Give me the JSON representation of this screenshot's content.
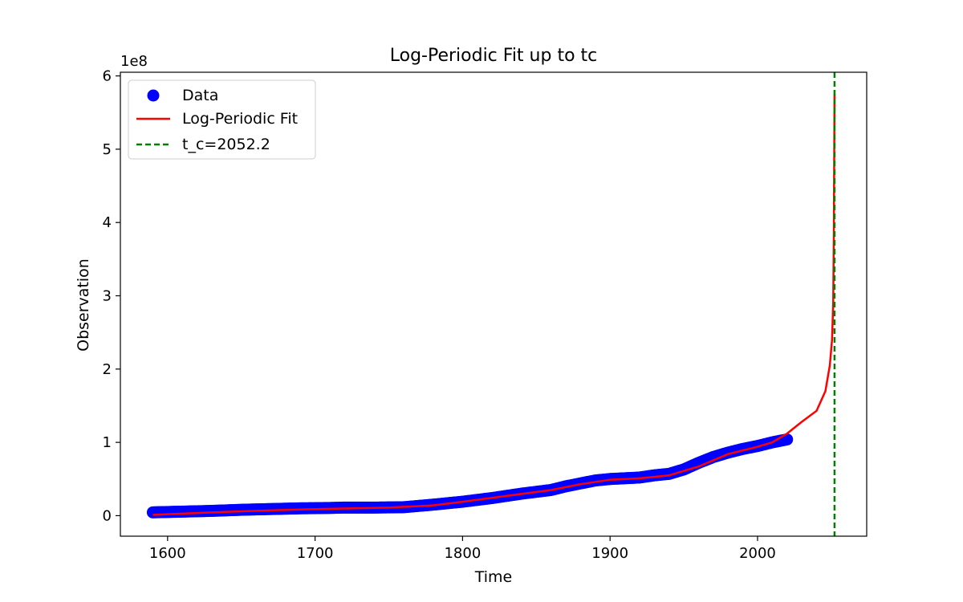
{
  "chart_data": {
    "type": "line",
    "title": "Log-Periodic Fit up to tc",
    "xlabel": "Time",
    "ylabel": "Observation",
    "offset_label": "1e8",
    "xlim": [
      1568,
      2074
    ],
    "ylim": [
      -0.28,
      6.05
    ],
    "x_ticks": [
      1600,
      1700,
      1800,
      1900,
      2000
    ],
    "y_ticks": [
      0,
      1,
      2,
      3,
      4,
      5,
      6
    ],
    "grid": false,
    "legend_position": "top-left",
    "legend": [
      {
        "label": "Data",
        "kind": "scatter",
        "color": "#0000ff"
      },
      {
        "label": "Log-Periodic Fit",
        "kind": "line",
        "color": "#ff0000"
      },
      {
        "label": "t_c=2052.2",
        "kind": "dashed-line",
        "color": "#008000"
      }
    ],
    "series": [
      {
        "name": "Data",
        "kind": "scatter",
        "color": "#0000ff",
        "points": [
          [
            1590,
            0.045
          ],
          [
            1610,
            0.055
          ],
          [
            1630,
            0.065
          ],
          [
            1650,
            0.08
          ],
          [
            1670,
            0.09
          ],
          [
            1690,
            0.1
          ],
          [
            1710,
            0.105
          ],
          [
            1720,
            0.11
          ],
          [
            1740,
            0.11
          ],
          [
            1760,
            0.115
          ],
          [
            1780,
            0.15
          ],
          [
            1800,
            0.19
          ],
          [
            1820,
            0.24
          ],
          [
            1840,
            0.3
          ],
          [
            1860,
            0.35
          ],
          [
            1870,
            0.4
          ],
          [
            1880,
            0.44
          ],
          [
            1890,
            0.48
          ],
          [
            1900,
            0.5
          ],
          [
            1910,
            0.51
          ],
          [
            1920,
            0.52
          ],
          [
            1930,
            0.55
          ],
          [
            1940,
            0.57
          ],
          [
            1950,
            0.63
          ],
          [
            1960,
            0.72
          ],
          [
            1970,
            0.8
          ],
          [
            1980,
            0.86
          ],
          [
            1990,
            0.91
          ],
          [
            2000,
            0.95
          ],
          [
            2010,
            1.0
          ],
          [
            2020,
            1.04
          ]
        ]
      },
      {
        "name": "Log-Periodic Fit",
        "kind": "line",
        "color": "#ff0000",
        "points": [
          [
            1590,
            0.01
          ],
          [
            1600,
            0.02
          ],
          [
            1650,
            0.06
          ],
          [
            1700,
            0.09
          ],
          [
            1750,
            0.11
          ],
          [
            1780,
            0.14
          ],
          [
            1800,
            0.19
          ],
          [
            1830,
            0.27
          ],
          [
            1860,
            0.35
          ],
          [
            1880,
            0.43
          ],
          [
            1900,
            0.49
          ],
          [
            1920,
            0.51
          ],
          [
            1940,
            0.55
          ],
          [
            1960,
            0.67
          ],
          [
            1980,
            0.84
          ],
          [
            2000,
            0.94
          ],
          [
            2010,
            1.0
          ],
          [
            2020,
            1.12
          ],
          [
            2030,
            1.28
          ],
          [
            2040,
            1.43
          ],
          [
            2046,
            1.7
          ],
          [
            2049,
            2.05
          ],
          [
            2050.5,
            2.4
          ],
          [
            2051.3,
            2.9
          ],
          [
            2051.7,
            3.8
          ],
          [
            2052.0,
            5.0
          ],
          [
            2052.2,
            5.75
          ]
        ]
      }
    ],
    "vline": {
      "name": "t_c=2052.2",
      "x": 2052.2,
      "color": "#008000",
      "style": "dashed"
    }
  }
}
